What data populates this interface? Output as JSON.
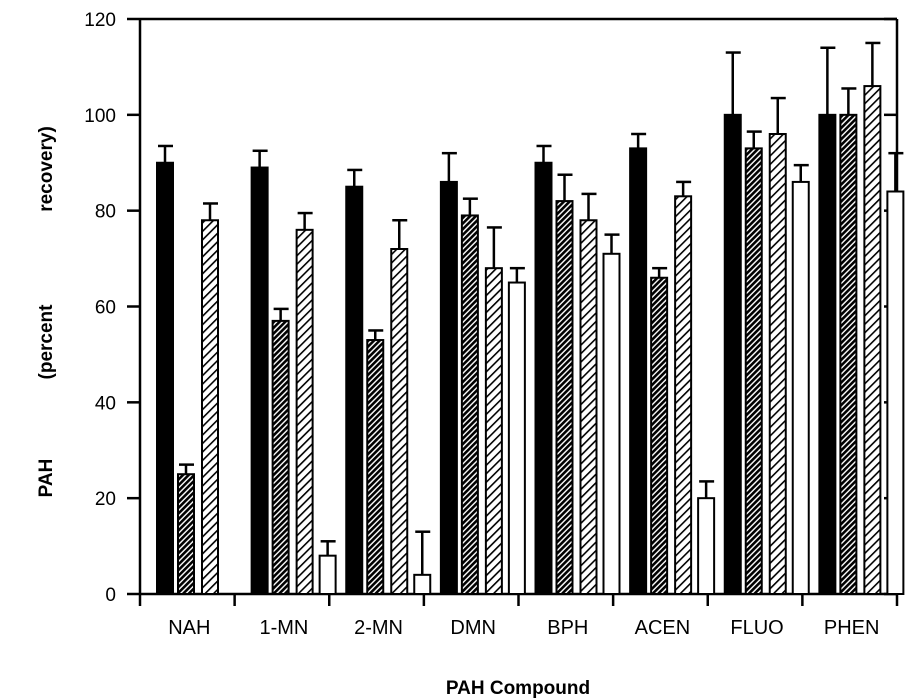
{
  "chart_data": {
    "type": "bar",
    "title": "",
    "xlabel": "PAH Compound",
    "ylabel_parts": [
      "PAH",
      "(percent",
      "recovery)"
    ],
    "ylim": [
      0,
      120
    ],
    "yticks": [
      0,
      20,
      40,
      60,
      80,
      100,
      120
    ],
    "grid": false,
    "legend": "none",
    "categories": [
      "NAH",
      "1-MN",
      "2-MN",
      "DMN",
      "BPH",
      "ACEN",
      "FLUO",
      "PHEN"
    ],
    "series": [
      {
        "pattern": "solid-black",
        "values": [
          90,
          89,
          85,
          86,
          90,
          93,
          100,
          100
        ],
        "errors": [
          3.5,
          3.5,
          3.5,
          6,
          3.5,
          3,
          13,
          14
        ]
      },
      {
        "pattern": "dense-dark-hatch",
        "values": [
          25,
          57,
          53,
          79,
          82,
          66,
          93,
          100
        ],
        "errors": [
          2,
          2.5,
          2,
          3.5,
          5.5,
          2,
          3.5,
          5.5
        ]
      },
      {
        "pattern": "light-diagonal-hatch",
        "values": [
          78,
          76,
          72,
          68,
          78,
          83,
          96,
          106
        ],
        "errors": [
          3.5,
          3.5,
          6,
          8.5,
          5.5,
          3,
          7.5,
          9
        ]
      },
      {
        "pattern": "white",
        "values": [
          null,
          8,
          4,
          65,
          71,
          20,
          86,
          84
        ],
        "errors": [
          null,
          3,
          9,
          3,
          4,
          3.5,
          3.5,
          8
        ]
      }
    ]
  }
}
